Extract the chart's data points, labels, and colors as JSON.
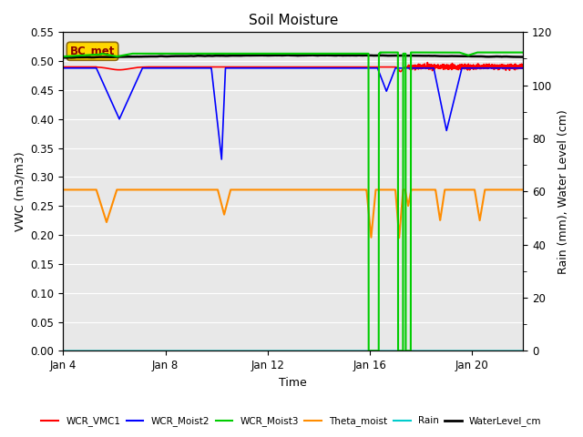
{
  "title": "Soil Moisture",
  "xlabel": "Time",
  "ylabel_left": "VWC (m3/m3)",
  "ylabel_right": "Rain (mm), Water Level (cm)",
  "ylim_left": [
    0.0,
    0.55
  ],
  "ylim_right": [
    0,
    120
  ],
  "yticks_left": [
    0.0,
    0.05,
    0.1,
    0.15,
    0.2,
    0.25,
    0.3,
    0.35,
    0.4,
    0.45,
    0.5,
    0.55
  ],
  "yticks_right": [
    0,
    20,
    40,
    60,
    80,
    100,
    120
  ],
  "bg_color": "#e8e8e8",
  "annotation_text": "BC_met",
  "annotation_box_color": "#ffd700",
  "annotation_text_color": "#8b0000",
  "colors": {
    "WCR_VMC1": "#ff0000",
    "WCR_Moist2": "#0000ff",
    "WCR_Moist3": "#00cc00",
    "Theta_moist": "#ff8c00",
    "Rain": "#00cccc",
    "WaterLevel_cm": "#000000"
  },
  "linewidths": {
    "WCR_VMC1": 1.2,
    "WCR_Moist2": 1.2,
    "WCR_Moist3": 1.5,
    "Theta_moist": 1.5,
    "Rain": 1.2,
    "WaterLevel_cm": 1.8
  },
  "xtick_positions": [
    0,
    4,
    8,
    12,
    16
  ],
  "xtick_labels": [
    "Jan 4",
    "Jan 8",
    "Jan 12",
    "Jan 16",
    "Jan 20"
  ],
  "xlim": [
    0,
    18
  ]
}
